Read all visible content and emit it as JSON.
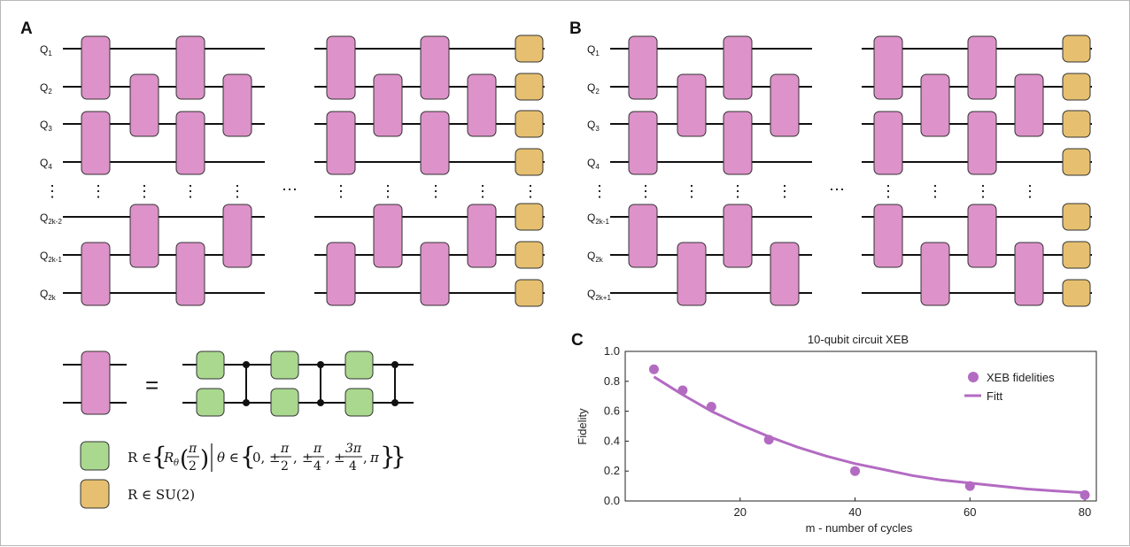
{
  "panels": {
    "a": {
      "label": "A",
      "qubit_labels": [
        {
          "main": "Q",
          "sub": "1"
        },
        {
          "main": "Q",
          "sub": "2"
        },
        {
          "main": "Q",
          "sub": "3"
        },
        {
          "main": "Q",
          "sub": "4"
        },
        {
          "main": "Q",
          "sub": "2k-2"
        },
        {
          "main": "Q",
          "sub": "2k-1"
        },
        {
          "main": "Q",
          "sub": "2k"
        }
      ]
    },
    "b": {
      "label": "B",
      "qubit_labels": [
        {
          "main": "Q",
          "sub": "1"
        },
        {
          "main": "Q",
          "sub": "2"
        },
        {
          "main": "Q",
          "sub": "3"
        },
        {
          "main": "Q",
          "sub": "4"
        },
        {
          "main": "Q",
          "sub": "2k-1"
        },
        {
          "main": "Q",
          "sub": "2k"
        },
        {
          "main": "Q",
          "sub": "2k+1"
        }
      ]
    },
    "c": {
      "label": "C"
    }
  },
  "dots": {
    "vertical": "⋮",
    "horizontal": "⋯"
  },
  "legend": {
    "equals": "=",
    "green_def": "R ∈ {Rθ(π/2) | θ ∈ {0, ±π/2, ±π/4, ±3π/4, π}}",
    "green_parts": {
      "r_in": "R ∈",
      "r_theta": "R",
      "theta_sub": "θ",
      "pi": "π",
      "two": "2",
      "theta_in": "θ ∈",
      "zero": "0,",
      "pm": "±",
      "four": "4",
      "three_pi": "3π",
      "comma": ",",
      "pi_end": "π"
    },
    "yellow_def": "R ∈ SU(2)"
  },
  "colors": {
    "two_qubit_gate": "#dd92c9",
    "single_qubit_gate": "#a9d88e",
    "final_gate": "#e6c070",
    "series": "#b36bc2",
    "wire": "#111111",
    "gate_border": "#333333"
  },
  "chart_data": {
    "type": "scatter",
    "title": "10-qubit circuit XEB",
    "xlabel": "m - number of cycles",
    "ylabel": "Fidelity",
    "xlim": [
      0,
      82
    ],
    "ylim": [
      0.0,
      1.0
    ],
    "xticks": [
      20,
      40,
      60,
      80
    ],
    "yticks": [
      0.0,
      0.2,
      0.4,
      0.6,
      0.8,
      1.0
    ],
    "grid": false,
    "legend_position": "top-right",
    "series": [
      {
        "name": "XEB fidelities",
        "kind": "points",
        "x": [
          5,
          10,
          15,
          25,
          40,
          60,
          80
        ],
        "y": [
          0.88,
          0.74,
          0.63,
          0.41,
          0.2,
          0.1,
          0.04
        ]
      },
      {
        "name": "Fitt",
        "kind": "line",
        "x": [
          5,
          10,
          15,
          20,
          25,
          30,
          35,
          40,
          45,
          50,
          55,
          60,
          65,
          70,
          75,
          80
        ],
        "y": [
          0.83,
          0.71,
          0.6,
          0.51,
          0.43,
          0.36,
          0.3,
          0.25,
          0.21,
          0.17,
          0.14,
          0.12,
          0.1,
          0.08,
          0.067,
          0.055
        ]
      }
    ]
  }
}
